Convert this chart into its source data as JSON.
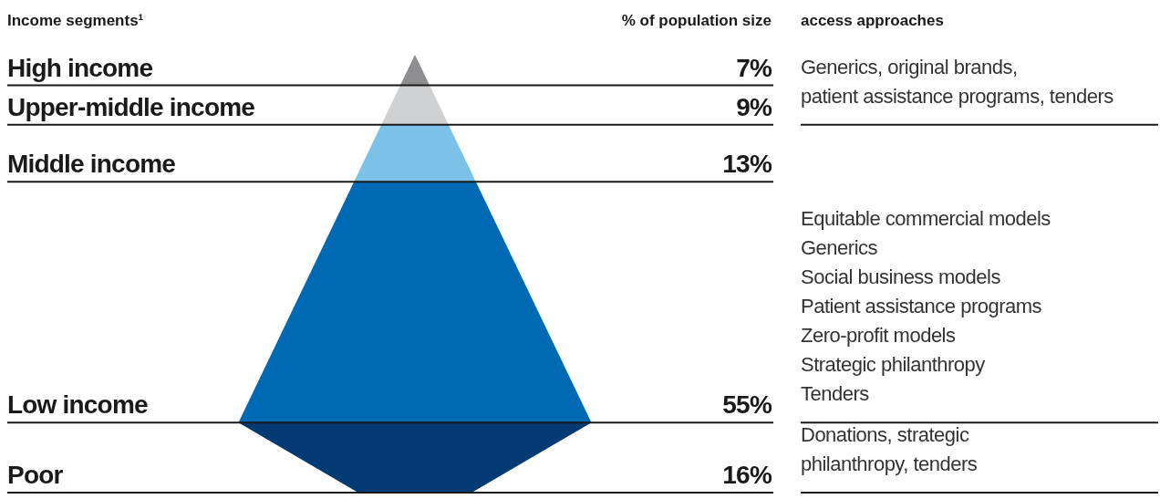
{
  "chart_data": {
    "type": "other",
    "title": "Income segments¹",
    "subtitle": "% of population size",
    "categories": [
      "High income",
      "Upper-middle income",
      "Middle income",
      "Low income",
      "Poor"
    ],
    "values": [
      7,
      9,
      13,
      55,
      16
    ],
    "value_labels": [
      "7%",
      "9%",
      "13%",
      "55%",
      "16%"
    ],
    "colors": [
      "#8e8e90",
      "#d0d1d3",
      "#7cc2e8",
      "#0069b4",
      "#043a73"
    ],
    "legend_title": "access approaches",
    "annotations": [
      {
        "text": "Generics, original brands,\npatient assistance programs, tenders",
        "y": "Upper-middle income"
      },
      {
        "text": "Equitable commercial models\nGenerics\nSocial business models\nPatient assistance programs\nZero-profit models\nStrategic philanthropy\nTenders",
        "y": "Low income"
      },
      {
        "text": "Donations, strategic\nphilanthropy, tenders",
        "y": "Poor"
      }
    ]
  }
}
